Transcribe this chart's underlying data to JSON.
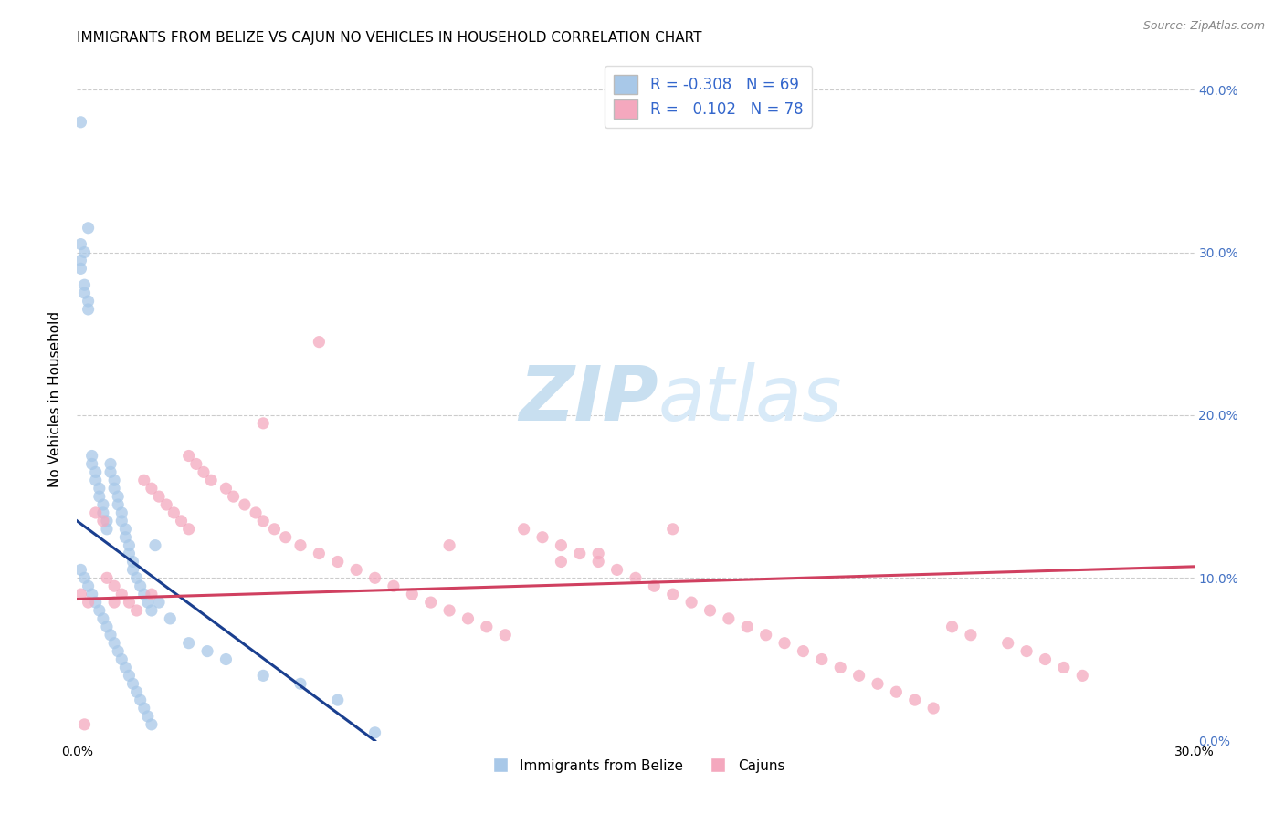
{
  "title": "IMMIGRANTS FROM BELIZE VS CAJUN NO VEHICLES IN HOUSEHOLD CORRELATION CHART",
  "source": "Source: ZipAtlas.com",
  "ylabel": "No Vehicles in Household",
  "xlim": [
    0.0,
    0.3
  ],
  "ylim": [
    0.0,
    0.42
  ],
  "ytick_vals": [
    0.0,
    0.1,
    0.2,
    0.3,
    0.4
  ],
  "legend_label1": "Immigrants from Belize",
  "legend_label2": "Cajuns",
  "R1": -0.308,
  "N1": 69,
  "R2": 0.102,
  "N2": 78,
  "color_blue": "#A8C8E8",
  "color_pink": "#F4A8BE",
  "trendline_blue": "#1A3F8F",
  "trendline_pink": "#D04060",
  "grid_color": "#CCCCCC",
  "watermark_color": "#D0E8F8",
  "blue_trend_x0": 0.0,
  "blue_trend_y0": 0.135,
  "blue_trend_x1": 0.08,
  "blue_trend_y1": 0.0,
  "pink_trend_x0": 0.0,
  "pink_trend_y0": 0.087,
  "pink_trend_x1": 0.3,
  "pink_trend_y1": 0.107,
  "blue_x": [
    0.001,
    0.003,
    0.001,
    0.002,
    0.001,
    0.001,
    0.002,
    0.002,
    0.003,
    0.003,
    0.004,
    0.004,
    0.005,
    0.005,
    0.006,
    0.006,
    0.007,
    0.007,
    0.008,
    0.008,
    0.009,
    0.009,
    0.01,
    0.01,
    0.011,
    0.011,
    0.012,
    0.012,
    0.013,
    0.013,
    0.014,
    0.014,
    0.015,
    0.015,
    0.016,
    0.017,
    0.018,
    0.019,
    0.02,
    0.021,
    0.001,
    0.002,
    0.003,
    0.004,
    0.005,
    0.006,
    0.007,
    0.008,
    0.009,
    0.01,
    0.011,
    0.012,
    0.013,
    0.014,
    0.015,
    0.016,
    0.017,
    0.018,
    0.019,
    0.02,
    0.022,
    0.025,
    0.03,
    0.035,
    0.04,
    0.05,
    0.06,
    0.07,
    0.08
  ],
  "blue_y": [
    0.38,
    0.315,
    0.305,
    0.3,
    0.295,
    0.29,
    0.28,
    0.275,
    0.27,
    0.265,
    0.175,
    0.17,
    0.165,
    0.16,
    0.155,
    0.15,
    0.145,
    0.14,
    0.135,
    0.13,
    0.17,
    0.165,
    0.16,
    0.155,
    0.15,
    0.145,
    0.14,
    0.135,
    0.13,
    0.125,
    0.12,
    0.115,
    0.11,
    0.105,
    0.1,
    0.095,
    0.09,
    0.085,
    0.08,
    0.12,
    0.105,
    0.1,
    0.095,
    0.09,
    0.085,
    0.08,
    0.075,
    0.07,
    0.065,
    0.06,
    0.055,
    0.05,
    0.045,
    0.04,
    0.035,
    0.03,
    0.025,
    0.02,
    0.015,
    0.01,
    0.085,
    0.075,
    0.06,
    0.055,
    0.05,
    0.04,
    0.035,
    0.025,
    0.005
  ],
  "pink_x": [
    0.001,
    0.003,
    0.005,
    0.007,
    0.008,
    0.01,
    0.012,
    0.014,
    0.016,
    0.018,
    0.02,
    0.022,
    0.024,
    0.026,
    0.028,
    0.03,
    0.032,
    0.034,
    0.036,
    0.04,
    0.042,
    0.045,
    0.048,
    0.05,
    0.053,
    0.056,
    0.06,
    0.065,
    0.07,
    0.075,
    0.08,
    0.085,
    0.09,
    0.095,
    0.1,
    0.105,
    0.11,
    0.115,
    0.12,
    0.125,
    0.13,
    0.135,
    0.14,
    0.145,
    0.15,
    0.155,
    0.16,
    0.165,
    0.17,
    0.175,
    0.18,
    0.185,
    0.19,
    0.195,
    0.2,
    0.205,
    0.21,
    0.215,
    0.22,
    0.225,
    0.23,
    0.235,
    0.24,
    0.25,
    0.255,
    0.26,
    0.265,
    0.27,
    0.14,
    0.1,
    0.065,
    0.05,
    0.03,
    0.02,
    0.01,
    0.13,
    0.16,
    0.002
  ],
  "pink_y": [
    0.09,
    0.085,
    0.14,
    0.135,
    0.1,
    0.095,
    0.09,
    0.085,
    0.08,
    0.16,
    0.155,
    0.15,
    0.145,
    0.14,
    0.135,
    0.13,
    0.17,
    0.165,
    0.16,
    0.155,
    0.15,
    0.145,
    0.14,
    0.135,
    0.13,
    0.125,
    0.12,
    0.115,
    0.11,
    0.105,
    0.1,
    0.095,
    0.09,
    0.085,
    0.08,
    0.075,
    0.07,
    0.065,
    0.13,
    0.125,
    0.12,
    0.115,
    0.11,
    0.105,
    0.1,
    0.095,
    0.09,
    0.085,
    0.08,
    0.075,
    0.07,
    0.065,
    0.06,
    0.055,
    0.05,
    0.045,
    0.04,
    0.035,
    0.03,
    0.025,
    0.02,
    0.07,
    0.065,
    0.06,
    0.055,
    0.05,
    0.045,
    0.04,
    0.115,
    0.12,
    0.245,
    0.195,
    0.175,
    0.09,
    0.085,
    0.11,
    0.13,
    0.01
  ]
}
